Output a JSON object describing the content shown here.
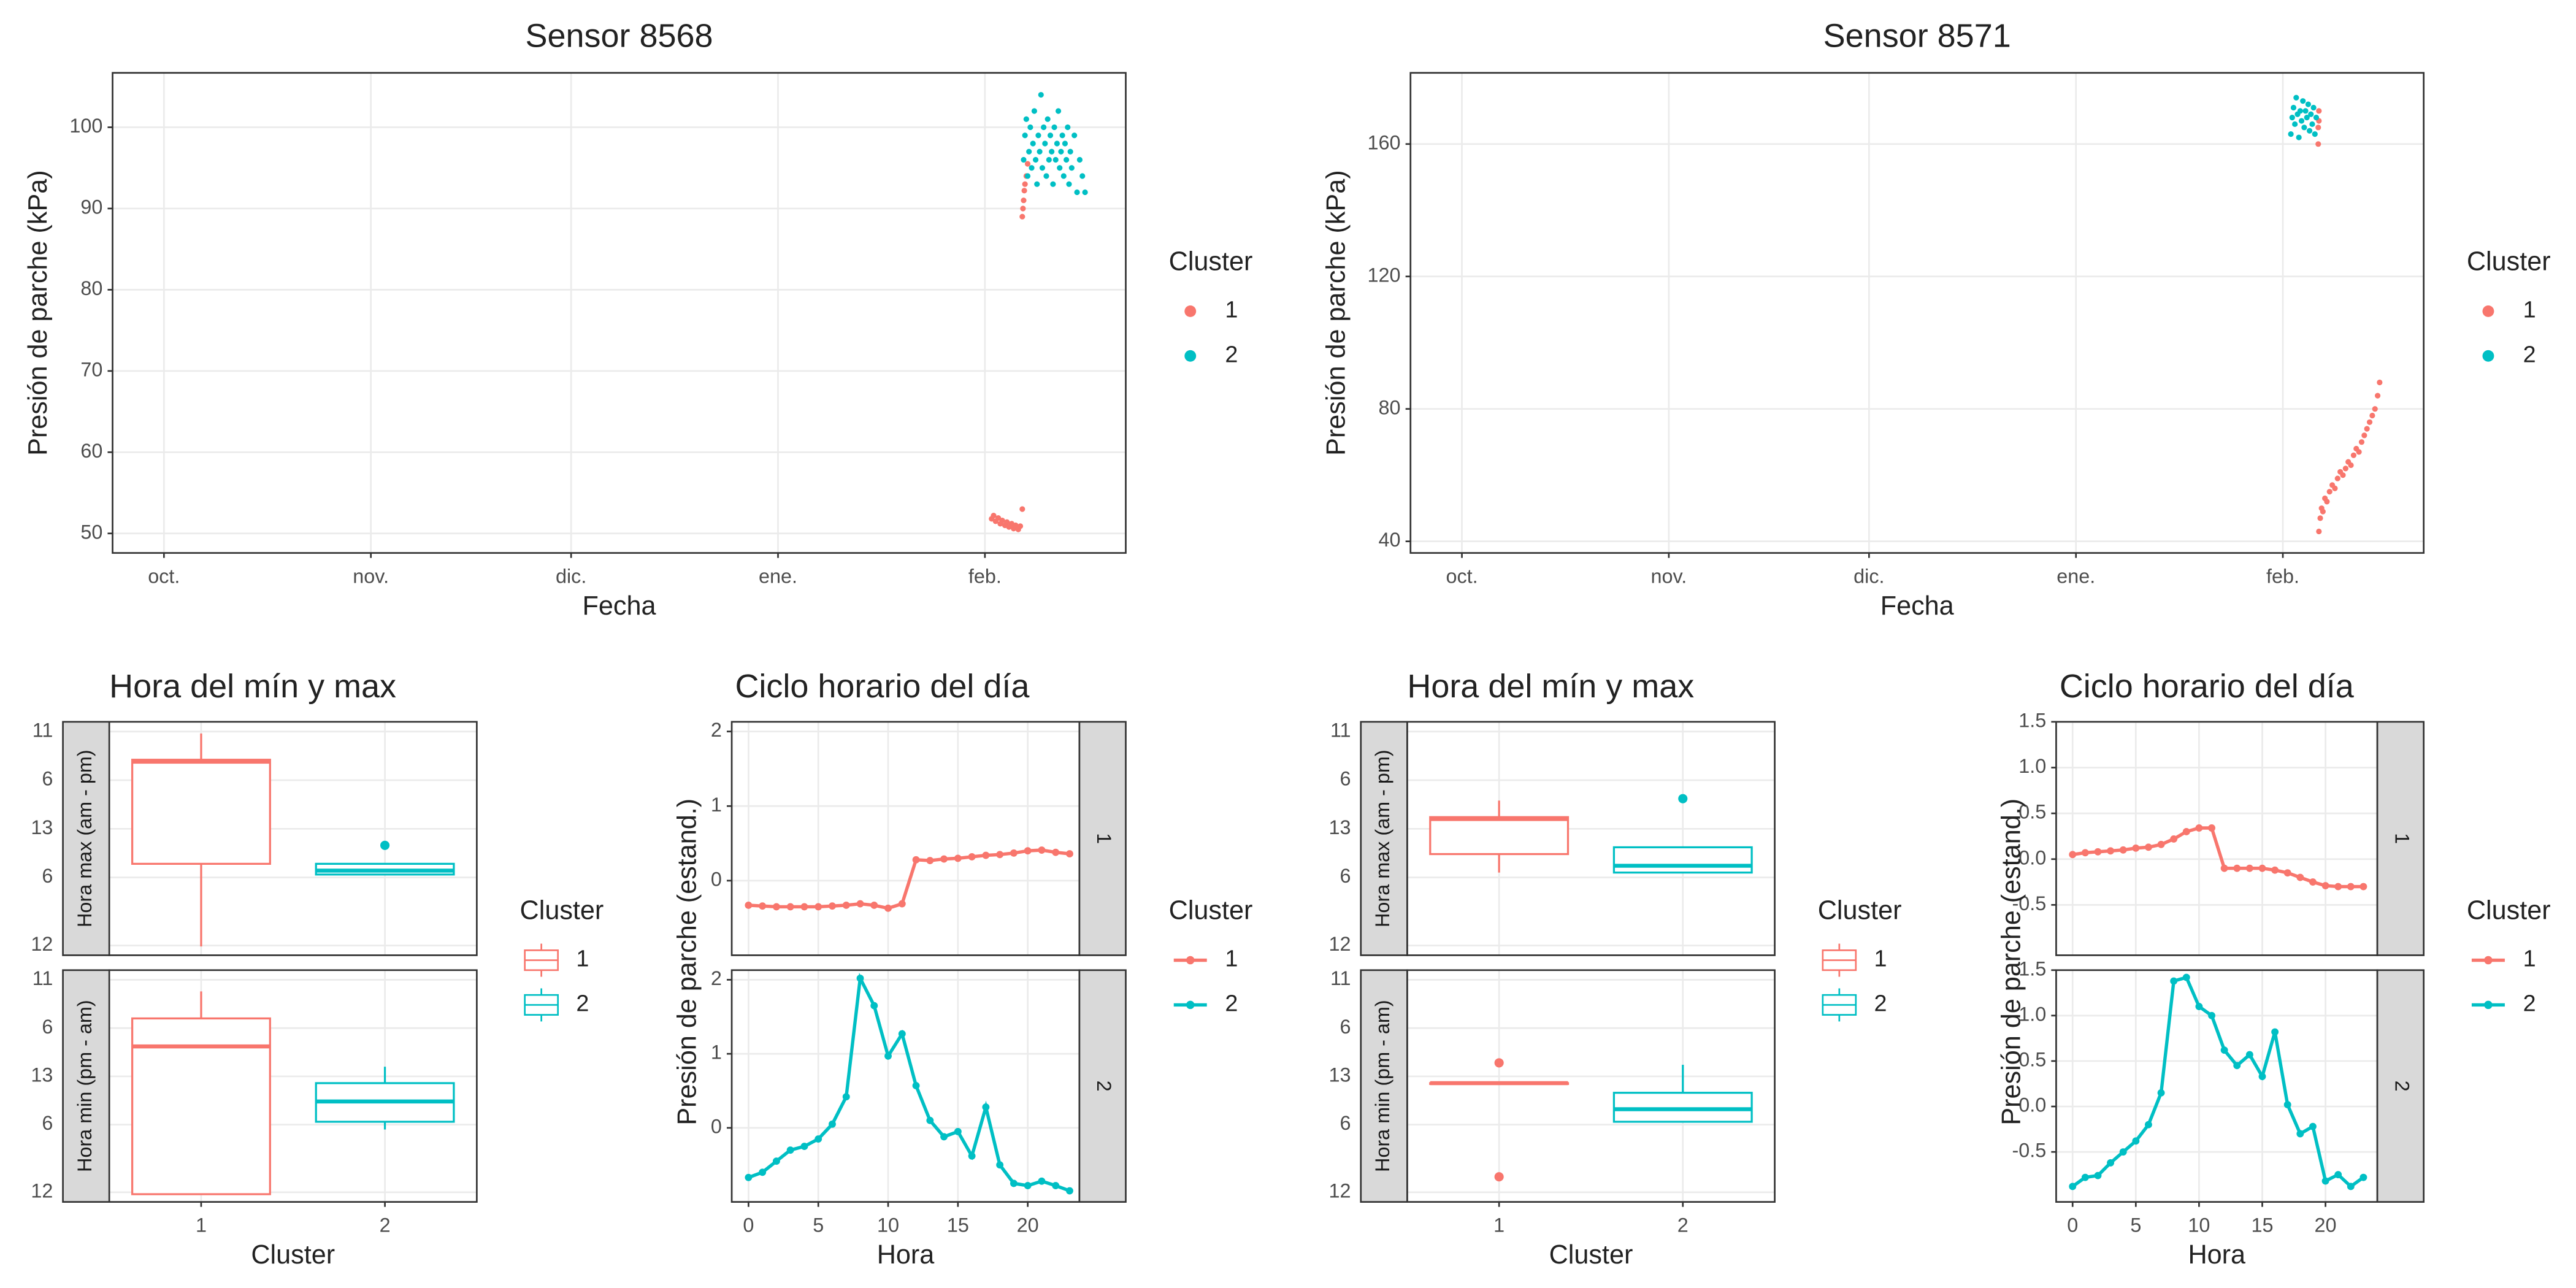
{
  "chart_data": [
    {
      "type": "scatter",
      "title": "Sensor 8568",
      "x_label": "Fecha",
      "y_label": "Presión de parche (kPa)",
      "legend_title": "Cluster",
      "xlim": [
        -7.7,
        144.1
      ],
      "xticks": [
        {
          "value": 0,
          "label": "oct."
        },
        {
          "value": 31,
          "label": "nov."
        },
        {
          "value": 61,
          "label": "dic."
        },
        {
          "value": 92,
          "label": "ene."
        },
        {
          "value": 123,
          "label": "feb."
        }
      ],
      "ylim": [
        47.6,
        106.7
      ],
      "yticks": [
        50,
        60,
        70,
        80,
        90,
        100
      ],
      "grid": true,
      "series": [
        {
          "name": "1",
          "color": "#F8766D",
          "x": [
            124,
            124.3,
            124.6,
            125,
            125.3,
            125.6,
            126,
            126.3,
            126.6,
            127,
            127.3,
            127.6,
            128,
            128.3,
            128.6,
            128.6,
            128.7,
            128.8,
            128.9,
            129,
            129.2,
            129.4
          ],
          "y": [
            51.8,
            52.2,
            51.5,
            51.9,
            51.2,
            51.6,
            51,
            51.4,
            50.8,
            51.2,
            50.6,
            51,
            50.5,
            50.9,
            53,
            89,
            90,
            91,
            92.2,
            93,
            94,
            95.5
          ]
        },
        {
          "name": "2",
          "color": "#00BFC4",
          "x": [
            128.8,
            129,
            129.2,
            129.4,
            129.6,
            129.8,
            130,
            130.2,
            130.4,
            130.6,
            130.8,
            131,
            131.2,
            131.4,
            131.6,
            131.8,
            132,
            132.2,
            132.4,
            132.6,
            132.8,
            133,
            133.2,
            133.4,
            133.6,
            133.8,
            134,
            134.2,
            134.4,
            134.6,
            134.8,
            135,
            135.2,
            135.4,
            135.6,
            135.8,
            136,
            136.4,
            136.8,
            137.2,
            137.6,
            138
          ],
          "y": [
            96,
            99,
            101,
            94,
            97,
            100,
            95,
            98,
            102,
            96,
            93,
            99,
            97,
            104,
            95,
            100,
            98,
            94,
            101,
            96,
            99,
            97,
            93,
            100,
            96,
            98,
            102,
            95,
            97,
            99,
            94,
            98,
            96,
            100,
            93,
            97,
            95,
            99,
            92,
            96,
            94,
            92
          ]
        }
      ]
    },
    {
      "type": "scatter",
      "title": "Sensor 8571",
      "x_label": "Fecha",
      "y_label": "Presión de parche (kPa)",
      "legend_title": "Cluster",
      "xlim": [
        -7.7,
        144.1
      ],
      "xticks": [
        {
          "value": 0,
          "label": "oct."
        },
        {
          "value": 31,
          "label": "nov."
        },
        {
          "value": 61,
          "label": "dic."
        },
        {
          "value": 92,
          "label": "ene."
        },
        {
          "value": 123,
          "label": "feb."
        }
      ],
      "ylim": [
        36.5,
        181.5
      ],
      "yticks": [
        40,
        80,
        120,
        160
      ],
      "grid": true,
      "series": [
        {
          "name": "1",
          "color": "#F8766D",
          "x": [
            128.3,
            128.3,
            128.4,
            128.4,
            128.4,
            128.6,
            128.8,
            129,
            129.3,
            129.6,
            130,
            130.4,
            130.8,
            131.2,
            131.6,
            132,
            132.4,
            132.8,
            133.2,
            133.6,
            134,
            134.4,
            134.8,
            135.2,
            135.6,
            136,
            136.4,
            136.8,
            137.2,
            137.5
          ],
          "y": [
            160,
            165,
            170,
            167,
            43,
            47,
            50,
            49,
            53,
            52,
            55,
            57,
            56,
            59,
            61,
            60,
            62,
            64,
            63,
            66,
            68,
            67,
            70,
            72,
            74,
            76,
            78,
            80,
            84,
            88
          ]
        },
        {
          "name": "2",
          "color": "#00BFC4",
          "x": [
            124.2,
            124.4,
            124.6,
            124.8,
            125,
            125.2,
            125.4,
            125.6,
            125.8,
            126,
            126.2,
            126.4,
            126.6,
            126.8,
            127,
            127.2,
            127.4,
            127.6,
            127.8,
            128
          ],
          "y": [
            163,
            168,
            171,
            166,
            174,
            169,
            162,
            170,
            167,
            173,
            165,
            170,
            168,
            172,
            164,
            169,
            166,
            171,
            163,
            168
          ]
        }
      ]
    },
    {
      "type": "box",
      "title": "Hora del mín y max",
      "x_label": "Cluster",
      "legend_title": "Cluster",
      "categories": [
        "1",
        "2"
      ],
      "colors": [
        "#F8766D",
        "#00BFC4"
      ],
      "ylim": [
        0,
        24
      ],
      "yticks": [
        {
          "value": 1,
          "label": "12"
        },
        {
          "value": 8,
          "label": "6"
        },
        13,
        {
          "value": 18,
          "label": "6"
        },
        {
          "value": 23,
          "label": "11"
        }
      ],
      "grid": true,
      "panels": [
        {
          "strip": "Hora max (am - pm)",
          "boxes": [
            {
              "min": 0.9,
              "q1": 9.4,
              "median": 19.9,
              "q3": 20.1,
              "max": 22.8,
              "outliers": []
            },
            {
              "min": 8.3,
              "q1": 8.3,
              "median": 8.7,
              "q3": 9.4,
              "max": 9.4,
              "outliers": [
                11.3
              ]
            }
          ]
        },
        {
          "strip": "Hora min (pm - am)",
          "boxes": [
            {
              "min": 0.8,
              "q1": 0.8,
              "median": 16.1,
              "q3": 19,
              "max": 21.8,
              "outliers": []
            },
            {
              "min": 7.5,
              "q1": 8.3,
              "median": 10.4,
              "q3": 12.3,
              "max": 14,
              "outliers": []
            }
          ]
        }
      ]
    },
    {
      "type": "line",
      "title": "Ciclo horario del día",
      "x_label": "Hora",
      "y_label": "Presión de parche (estand.)",
      "legend_title": "Cluster",
      "facet": true,
      "x": [
        0,
        1,
        2,
        3,
        4,
        5,
        6,
        7,
        8,
        9,
        10,
        11,
        12,
        13,
        14,
        15,
        16,
        17,
        18,
        19,
        20,
        21,
        22,
        23
      ],
      "xlim": [
        -1.2,
        23.7
      ],
      "xticks": [
        0,
        5,
        10,
        15,
        20
      ],
      "ylim": [
        -1.0,
        2.13
      ],
      "yticks": [
        0,
        1,
        2
      ],
      "grid": true,
      "series": [
        {
          "name": "1",
          "color": "#F8766D",
          "values": [
            -0.33,
            -0.34,
            -0.35,
            -0.35,
            -0.35,
            -0.35,
            -0.34,
            -0.33,
            -0.31,
            -0.33,
            -0.37,
            -0.31,
            0.28,
            0.27,
            0.29,
            0.3,
            0.32,
            0.34,
            0.35,
            0.37,
            0.4,
            0.41,
            0.38,
            0.36
          ]
        },
        {
          "name": "2",
          "color": "#00BFC4",
          "values": [
            -0.67,
            -0.6,
            -0.45,
            -0.3,
            -0.25,
            -0.15,
            0.05,
            0.42,
            2.02,
            1.65,
            0.97,
            1.27,
            0.57,
            0.1,
            -0.12,
            -0.05,
            -0.38,
            0.28,
            -0.5,
            -0.75,
            -0.78,
            -0.72,
            -0.78,
            -0.85
          ]
        }
      ]
    },
    {
      "type": "box",
      "title": "Hora del mín y max",
      "x_label": "Cluster",
      "legend_title": "Cluster",
      "categories": [
        "1",
        "2"
      ],
      "colors": [
        "#F8766D",
        "#00BFC4"
      ],
      "ylim": [
        0,
        24
      ],
      "yticks": [
        {
          "value": 1,
          "label": "12"
        },
        {
          "value": 8,
          "label": "6"
        },
        13,
        {
          "value": 18,
          "label": "6"
        },
        {
          "value": 23,
          "label": "11"
        }
      ],
      "grid": true,
      "panels": [
        {
          "strip": "Hora max (am - pm)",
          "boxes": [
            {
              "min": 8.5,
              "q1": 10.4,
              "median": 14,
              "q3": 14.2,
              "max": 15.9,
              "outliers": []
            },
            {
              "min": 8.5,
              "q1": 8.5,
              "median": 9.2,
              "q3": 11.1,
              "max": 11.1,
              "outliers": [
                16.1
              ]
            }
          ]
        },
        {
          "strip": "Hora min (pm - am)",
          "boxes": [
            {
              "min": 12.3,
              "q1": 12.3,
              "median": 12.3,
              "q3": 12.3,
              "max": 12.3,
              "outliers": [
                14.4,
                2.6
              ]
            },
            {
              "min": 8.3,
              "q1": 8.3,
              "median": 9.6,
              "q3": 11.3,
              "max": 14.2,
              "outliers": []
            }
          ]
        }
      ]
    },
    {
      "type": "line",
      "title": "Ciclo horario del día",
      "x_label": "Hora",
      "y_label": "Presión de parche (estand.)",
      "legend_title": "Cluster",
      "facet": true,
      "x": [
        0,
        1,
        2,
        3,
        4,
        5,
        6,
        7,
        8,
        9,
        10,
        11,
        12,
        13,
        14,
        15,
        16,
        17,
        18,
        19,
        20,
        21,
        22,
        23
      ],
      "xlim": [
        -1.3,
        24.1
      ],
      "xticks": [
        0,
        5,
        10,
        15,
        20
      ],
      "ylim": [
        -1.05,
        1.5
      ],
      "yticks": [
        -0.5,
        {
          "value": 0,
          "label": "0.0"
        },
        0.5,
        {
          "value": 1,
          "label": "1.0"
        },
        1.5
      ],
      "grid": true,
      "series": [
        {
          "name": "1",
          "color": "#F8766D",
          "values": [
            0.05,
            0.07,
            0.08,
            0.09,
            0.1,
            0.12,
            0.13,
            0.16,
            0.22,
            0.3,
            0.34,
            0.34,
            -0.1,
            -0.1,
            -0.1,
            -0.1,
            -0.12,
            -0.15,
            -0.2,
            -0.25,
            -0.29,
            -0.3,
            -0.3,
            -0.3
          ]
        },
        {
          "name": "2",
          "color": "#00BFC4",
          "values": [
            -0.88,
            -0.78,
            -0.76,
            -0.62,
            -0.5,
            -0.38,
            -0.2,
            0.15,
            1.38,
            1.42,
            1.1,
            1,
            0.62,
            0.45,
            0.57,
            0.33,
            0.82,
            0.02,
            -0.3,
            -0.22,
            -0.82,
            -0.75,
            -0.88,
            -0.78
          ]
        }
      ]
    }
  ]
}
